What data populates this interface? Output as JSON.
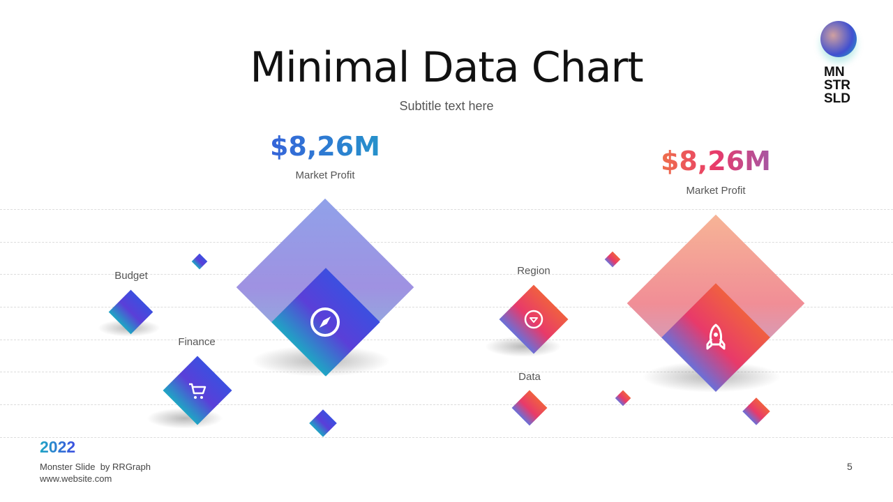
{
  "header": {
    "title": "Minimal Data Chart",
    "subtitle": "Subtitle text here"
  },
  "logo": {
    "text": [
      "MN",
      "STR",
      "SLD"
    ]
  },
  "left_panel": {
    "value": "$8,26M",
    "value_label": "Market Profit",
    "labels": {
      "budget": "Budget",
      "finance": "Finance"
    },
    "center_icon": "compass-icon",
    "small_icon": "cart-icon"
  },
  "right_panel": {
    "value": "$8,26M",
    "value_label": "Market Profit",
    "labels": {
      "region": "Region",
      "data": "Data"
    },
    "center_icon": "rocket-icon",
    "small_icon": "diamond-icon"
  },
  "footer": {
    "year": "2022",
    "credit": "Monster Slide  by RRGraph",
    "website": "www.website.com",
    "page": "5"
  },
  "colors": {
    "blue_accent": "#3c4fe0",
    "teal_accent": "#1fa6c4",
    "red_accent": "#e83a6a",
    "orange_accent": "#f06040"
  }
}
